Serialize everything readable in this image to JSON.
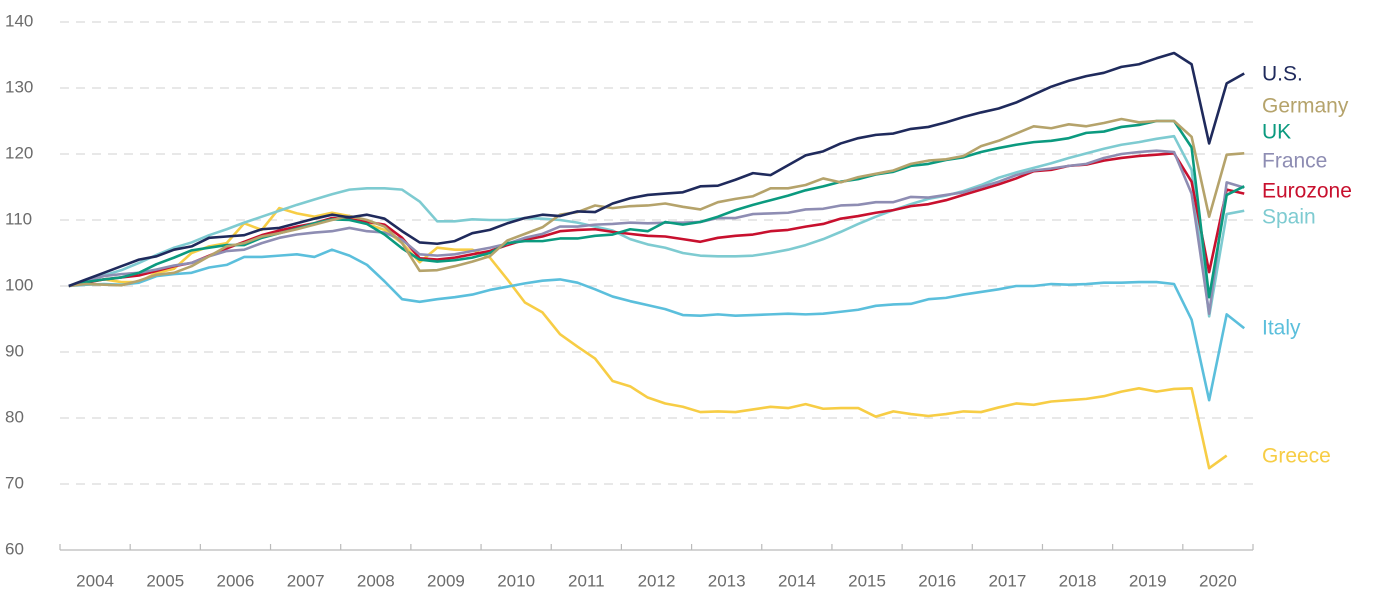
{
  "chart_data": {
    "type": "line",
    "categories": [
      "2004",
      null,
      null,
      null,
      "2005",
      null,
      null,
      null,
      "2006",
      null,
      null,
      null,
      "2007",
      null,
      null,
      null,
      "2008",
      null,
      null,
      null,
      "2009",
      null,
      null,
      null,
      "2010",
      null,
      null,
      null,
      "2011",
      null,
      null,
      null,
      "2012",
      null,
      null,
      null,
      "2013",
      null,
      null,
      null,
      "2014",
      null,
      null,
      null,
      "2015",
      null,
      null,
      null,
      "2016",
      null,
      null,
      null,
      "2017",
      null,
      null,
      null,
      "2018",
      null,
      null,
      null,
      "2019",
      null,
      null,
      null,
      "2020",
      null,
      null,
      null
    ],
    "ylim": [
      60,
      140
    ],
    "yticks": [
      60,
      70,
      80,
      90,
      100,
      110,
      120,
      130,
      140
    ],
    "grid": true,
    "series": [
      {
        "name": "U.S.",
        "color": "#1f2a5c",
        "values": [
          100,
          101,
          102,
          103,
          104,
          104.5,
          105.5,
          106,
          107.3,
          107.5,
          107.7,
          108.6,
          108.8,
          109.5,
          110.2,
          110.8,
          110.4,
          110.8,
          110.2,
          108.3,
          106.6,
          106.4,
          106.8,
          108,
          108.5,
          109.5,
          110.3,
          110.8,
          110.6,
          111.3,
          111.2,
          112.5,
          113.3,
          113.8,
          114,
          114.2,
          115.1,
          115.2,
          116.1,
          117.1,
          116.8,
          118.3,
          119.8,
          120.4,
          121.6,
          122.4,
          122.9,
          123.1,
          123.8,
          124.1,
          124.8,
          125.6,
          126.3,
          126.9,
          127.8,
          129,
          130.2,
          131.1,
          131.8,
          132.3,
          133.2,
          133.6,
          134.5,
          135.3,
          133.6,
          121.6,
          130.7,
          132.2
        ]
      },
      {
        "name": "Germany",
        "color": "#b5a36b",
        "values": [
          100,
          100.3,
          100.2,
          100.1,
          100.8,
          101.7,
          102,
          103,
          104.5,
          106,
          106.5,
          107.5,
          108,
          108.6,
          109.3,
          110,
          110.6,
          110,
          109,
          106.5,
          102.3,
          102.4,
          103,
          103.7,
          104.5,
          106.9,
          107.9,
          108.9,
          110.8,
          111.2,
          112.2,
          111.8,
          112.1,
          112.2,
          112.5,
          112,
          111.6,
          112.7,
          113.2,
          113.6,
          114.8,
          114.8,
          115.3,
          116.3,
          115.7,
          116.5,
          117,
          117.5,
          118.5,
          119,
          119.2,
          119.7,
          121.2,
          122,
          123.1,
          124.2,
          123.9,
          124.5,
          124.2,
          124.7,
          125.3,
          124.8,
          125,
          125,
          122.6,
          110.5,
          119.9,
          120.1
        ]
      },
      {
        "name": "UK",
        "color": "#0b9a7f",
        "values": [
          100,
          100.6,
          101,
          101.3,
          102,
          103.3,
          104.3,
          105.4,
          105.8,
          106.2,
          106.2,
          107.3,
          108,
          108.7,
          109.5,
          110.1,
          110,
          109.4,
          107.8,
          105.7,
          104,
          103.7,
          103.9,
          104.3,
          105,
          106.5,
          106.8,
          106.8,
          107.2,
          107.2,
          107.6,
          107.8,
          108.6,
          108.3,
          109.7,
          109.3,
          109.7,
          110.5,
          111.5,
          112.3,
          113,
          113.7,
          114.5,
          115.1,
          115.8,
          116.2,
          116.9,
          117.3,
          118.2,
          118.5,
          119.1,
          119.5,
          120.3,
          120.9,
          121.4,
          121.8,
          122,
          122.4,
          123.2,
          123.4,
          124.1,
          124.4,
          125,
          125,
          121,
          98.3,
          113.8,
          115.1
        ]
      },
      {
        "name": "France",
        "color": "#8e8db3",
        "values": [
          100,
          100.8,
          101.5,
          101.8,
          102,
          102.5,
          103.1,
          103.5,
          104.5,
          105.3,
          105.5,
          106.5,
          107.3,
          107.8,
          108.1,
          108.3,
          108.8,
          108.3,
          108.1,
          107,
          104.8,
          104.6,
          104.8,
          105.3,
          105.8,
          106.4,
          107.3,
          107.9,
          109,
          109,
          109.3,
          109.4,
          109.6,
          109.5,
          109.6,
          109.6,
          109.7,
          110.3,
          110.3,
          110.9,
          111,
          111.1,
          111.6,
          111.7,
          112.2,
          112.3,
          112.7,
          112.7,
          113.5,
          113.4,
          113.8,
          114.2,
          115,
          115.8,
          116.8,
          117.5,
          117.8,
          118.2,
          118.5,
          119.4,
          120,
          120.3,
          120.5,
          120.3,
          114,
          95.8,
          115.7,
          114.9
        ]
      },
      {
        "name": "Eurozone",
        "color": "#c8102e",
        "values": [
          100,
          100.5,
          101,
          101.3,
          101.6,
          102.3,
          103,
          103.5,
          104.6,
          105.7,
          106.7,
          107.7,
          108.4,
          109,
          109.5,
          110.3,
          110.1,
          109.7,
          109.3,
          107.3,
          104.2,
          104,
          104.3,
          104.8,
          105.3,
          106.2,
          107,
          107.5,
          108.3,
          108.5,
          108.6,
          108.2,
          107.9,
          107.6,
          107.5,
          107.1,
          106.7,
          107.3,
          107.6,
          107.8,
          108.3,
          108.5,
          109,
          109.4,
          110.2,
          110.6,
          111.1,
          111.5,
          112.1,
          112.4,
          113,
          113.8,
          114.6,
          115.4,
          116.3,
          117.4,
          117.6,
          118.2,
          118.4,
          119,
          119.4,
          119.7,
          119.9,
          120.1,
          115.8,
          102.1,
          114.6,
          114
        ]
      },
      {
        "name": "Spain",
        "color": "#7ecbd1",
        "values": [
          100,
          100.8,
          101.6,
          102.4,
          103.5,
          104.7,
          105.8,
          106.6,
          107.7,
          108.6,
          109.6,
          110.5,
          111.4,
          112.3,
          113.1,
          113.9,
          114.6,
          114.8,
          114.8,
          114.6,
          112.8,
          109.8,
          109.8,
          110.1,
          110,
          110,
          110.3,
          110.2,
          110,
          109.6,
          109,
          108.4,
          107.1,
          106.3,
          105.8,
          105,
          104.6,
          104.5,
          104.5,
          104.6,
          105,
          105.5,
          106.2,
          107.1,
          108.2,
          109.4,
          110.5,
          111.5,
          112.4,
          113.2,
          113.7,
          114.4,
          115.3,
          116.4,
          117.2,
          117.9,
          118.6,
          119.4,
          120.1,
          120.8,
          121.4,
          121.8,
          122.3,
          122.7,
          117.6,
          95.4,
          110.9,
          111.4
        ]
      },
      {
        "name": "Italy",
        "color": "#5bbfdc",
        "values": [
          100,
          100.2,
          100.3,
          100.2,
          100.5,
          101.5,
          101.8,
          102,
          102.8,
          103.2,
          104.4,
          104.4,
          104.6,
          104.8,
          104.4,
          105.5,
          104.6,
          103.2,
          100.7,
          98,
          97.6,
          98,
          98.3,
          98.7,
          99.4,
          99.9,
          100.4,
          100.8,
          101,
          100.5,
          99.5,
          98.4,
          97.7,
          97.1,
          96.5,
          95.6,
          95.5,
          95.7,
          95.5,
          95.6,
          95.7,
          95.8,
          95.7,
          95.8,
          96.1,
          96.4,
          97,
          97.2,
          97.3,
          98,
          98.2,
          98.7,
          99.1,
          99.5,
          100,
          100,
          100.3,
          100.2,
          100.3,
          100.5,
          100.5,
          100.6,
          100.6,
          100.3,
          94.9,
          82.7,
          95.7,
          93.6
        ]
      },
      {
        "name": "Greece",
        "color": "#f7cd45",
        "values": [
          100,
          100.5,
          101,
          100.6,
          100.6,
          102,
          102.6,
          105,
          106,
          106.5,
          109.5,
          108.5,
          111.8,
          111,
          110.5,
          111.1,
          110.6,
          109.4,
          108.5,
          106.5,
          103.6,
          105.8,
          105.5,
          105.5,
          104.3,
          101,
          97.5,
          96,
          92.7,
          90.8,
          89,
          85.6,
          84.8,
          83.1,
          82.2,
          81.7,
          80.9,
          81,
          80.9,
          81.3,
          81.7,
          81.5,
          82.1,
          81.4,
          81.5,
          81.5,
          80.2,
          81,
          80.6,
          80.3,
          80.6,
          81,
          80.9,
          81.6,
          82.2,
          82,
          82.5,
          82.7,
          82.9,
          83.3,
          84,
          84.5,
          84,
          84.4,
          84.5,
          72.4,
          74.3,
          null
        ]
      }
    ]
  }
}
